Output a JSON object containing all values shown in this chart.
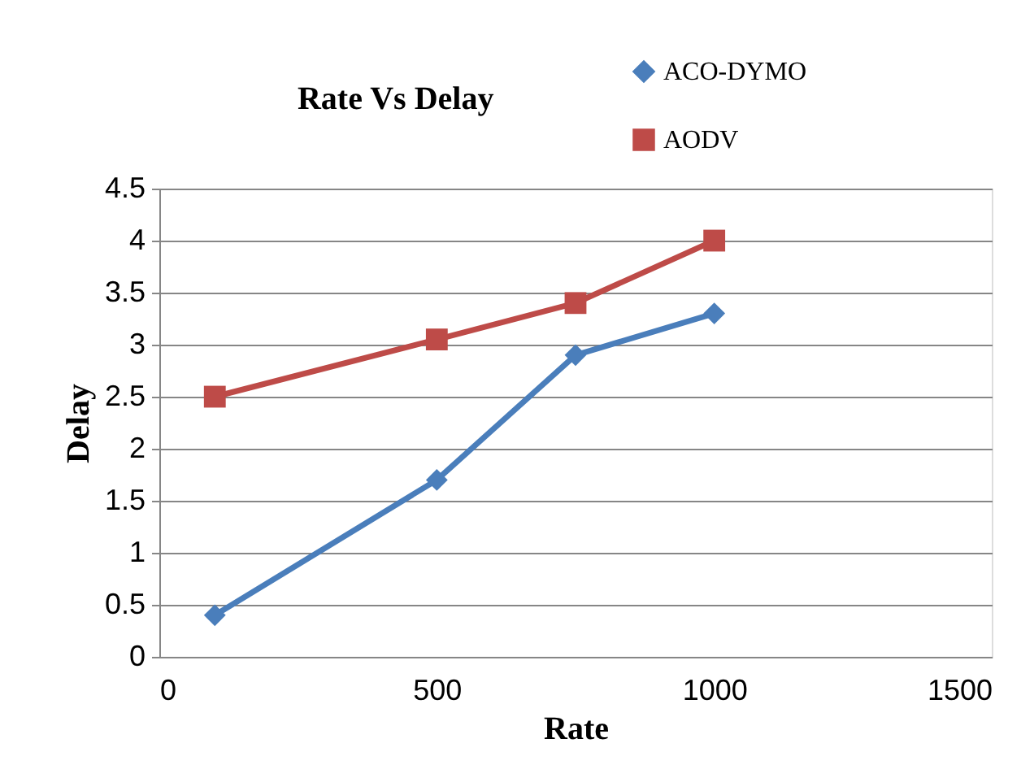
{
  "chart_data": {
    "type": "line",
    "title": "Rate Vs Delay",
    "xlabel": "Rate",
    "ylabel": "Delay",
    "xlim": [
      0,
      1500
    ],
    "xticks": [
      0,
      500,
      1000,
      1500
    ],
    "ylim": [
      0,
      4.5
    ],
    "yticks": [
      0,
      0.5,
      1,
      1.5,
      2,
      2.5,
      3,
      3.5,
      4,
      4.5
    ],
    "grid": "y",
    "legend": "top right",
    "line_style": "solid",
    "series": [
      {
        "name": "ACO-DYMO",
        "color": "#4a7ebb",
        "marker": "diamond",
        "x": [
          100,
          500,
          750,
          1000
        ],
        "values": [
          0.4,
          1.7,
          2.9,
          3.3
        ]
      },
      {
        "name": "AODV",
        "color": "#be4b48",
        "marker": "square",
        "x": [
          100,
          500,
          750,
          1000
        ],
        "values": [
          2.5,
          3.05,
          3.4,
          4.0
        ]
      }
    ]
  }
}
